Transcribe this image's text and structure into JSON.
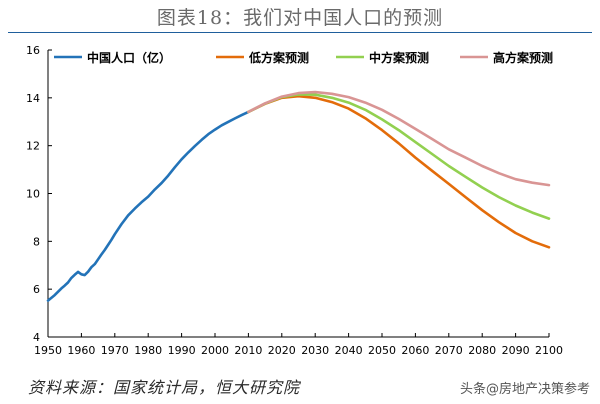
{
  "figure": {
    "title": "图表18：我们对中国人口的预测",
    "source": "资料来源：国家统计局，恒大研究院",
    "watermark": "头条@房地产决策参考"
  },
  "colors": {
    "historical": "#2373b8",
    "low": "#e36c0a",
    "mid": "#92d050",
    "high": "#d99594",
    "axis": "#000000",
    "title_rule": "#1f5f9c"
  },
  "chart_data": {
    "type": "line",
    "title": "图表18：我们对中国人口的预测",
    "xlabel": "",
    "ylabel": "",
    "xlim": [
      1950,
      2100
    ],
    "ylim": [
      4,
      16
    ],
    "xticks": [
      1950,
      1960,
      1970,
      1980,
      1990,
      2000,
      2010,
      2020,
      2030,
      2040,
      2050,
      2060,
      2070,
      2080,
      2090,
      2100
    ],
    "yticks": [
      4,
      6,
      8,
      10,
      12,
      14,
      16
    ],
    "grid": false,
    "legend_position": "top",
    "series": [
      {
        "name": "中国人口（亿）",
        "color_key": "historical",
        "x": [
          1950,
          1952,
          1954,
          1955,
          1956,
          1957,
          1958,
          1959,
          1960,
          1961,
          1962,
          1963,
          1964,
          1965,
          1966,
          1967,
          1968,
          1969,
          1970,
          1972,
          1974,
          1976,
          1978,
          1980,
          1982,
          1984,
          1986,
          1988,
          1990,
          1992,
          1994,
          1996,
          1998,
          2000,
          2002,
          2004,
          2006,
          2008,
          2010
        ],
        "values": [
          5.52,
          5.75,
          6.03,
          6.15,
          6.28,
          6.47,
          6.6,
          6.72,
          6.62,
          6.59,
          6.73,
          6.92,
          7.05,
          7.25,
          7.45,
          7.64,
          7.85,
          8.07,
          8.3,
          8.72,
          9.09,
          9.37,
          9.63,
          9.87,
          10.17,
          10.44,
          10.75,
          11.1,
          11.43,
          11.72,
          11.99,
          12.24,
          12.48,
          12.67,
          12.85,
          13.0,
          13.14,
          13.28,
          13.41
        ]
      },
      {
        "name": "低方案预测",
        "color_key": "low",
        "x": [
          2010,
          2015,
          2020,
          2025,
          2030,
          2035,
          2040,
          2045,
          2050,
          2055,
          2060,
          2065,
          2070,
          2075,
          2080,
          2085,
          2090,
          2095,
          2100
        ],
        "values": [
          13.41,
          13.75,
          14.0,
          14.07,
          14.0,
          13.82,
          13.55,
          13.15,
          12.65,
          12.1,
          11.5,
          10.95,
          10.4,
          9.85,
          9.3,
          8.8,
          8.35,
          8.0,
          7.75
        ]
      },
      {
        "name": "中方案预测",
        "color_key": "mid",
        "x": [
          2010,
          2015,
          2020,
          2025,
          2030,
          2035,
          2040,
          2045,
          2050,
          2055,
          2060,
          2065,
          2070,
          2075,
          2080,
          2085,
          2090,
          2095,
          2100
        ],
        "values": [
          13.41,
          13.76,
          14.03,
          14.14,
          14.13,
          14.0,
          13.8,
          13.5,
          13.1,
          12.65,
          12.15,
          11.65,
          11.15,
          10.7,
          10.25,
          9.85,
          9.5,
          9.2,
          8.95
        ]
      },
      {
        "name": "高方案预测",
        "color_key": "high",
        "x": [
          2010,
          2015,
          2020,
          2025,
          2030,
          2035,
          2040,
          2045,
          2050,
          2055,
          2060,
          2065,
          2070,
          2075,
          2080,
          2085,
          2090,
          2095,
          2100
        ],
        "values": [
          13.41,
          13.77,
          14.05,
          14.2,
          14.24,
          14.17,
          14.03,
          13.8,
          13.5,
          13.12,
          12.7,
          12.28,
          11.85,
          11.5,
          11.15,
          10.85,
          10.6,
          10.45,
          10.35
        ]
      }
    ]
  }
}
